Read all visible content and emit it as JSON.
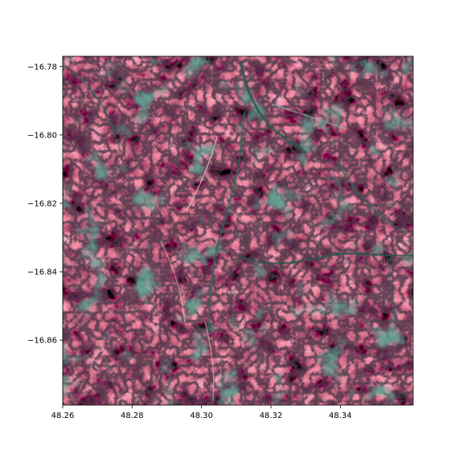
{
  "map": {
    "type": "raster-image",
    "description_visible": "false-color satellite raster",
    "x_ticks": [
      "48.26",
      "48.28",
      "48.30",
      "48.32",
      "48.34"
    ],
    "y_ticks": [
      "−16.78",
      "−16.80",
      "−16.82",
      "−16.84",
      "−16.86"
    ],
    "x_tick_values": [
      48.26,
      48.28,
      48.3,
      48.32,
      48.34
    ],
    "y_tick_values": [
      -16.78,
      -16.8,
      -16.82,
      -16.84,
      -16.86
    ],
    "xlim": [
      48.26,
      48.361
    ],
    "ylim": [
      -16.879,
      -16.777
    ],
    "colors": {
      "base": "#3a1f2a",
      "ridge": "#d9787a",
      "shadow": "#140a12",
      "vegetation": "#1f5a4a",
      "bright": "#e8d8c8"
    }
  }
}
